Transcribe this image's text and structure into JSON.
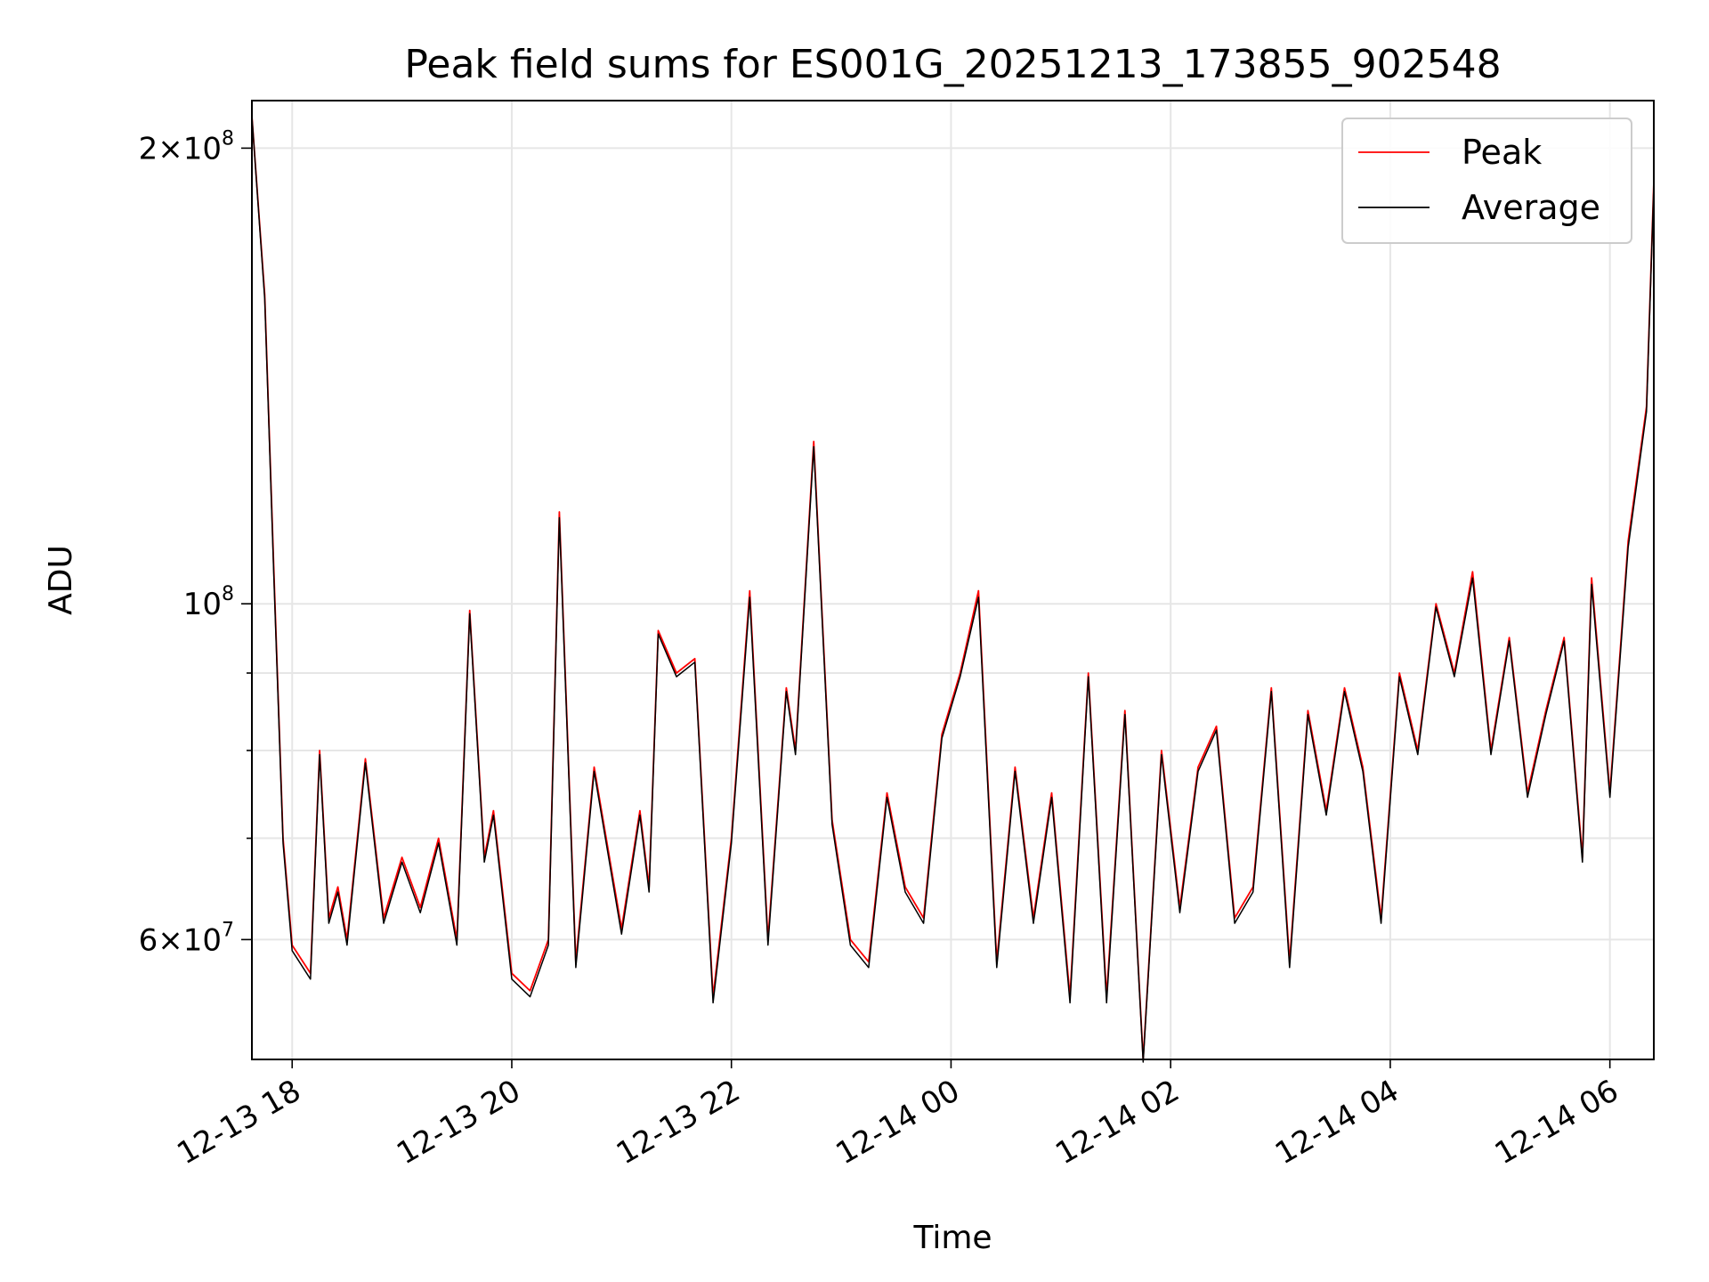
{
  "chart_data": {
    "type": "line",
    "title": "Peak field sums for ES001G_20251213_173855_902548",
    "xlabel": "Time",
    "ylabel": "ADU",
    "xlim": [
      "2025-12-13 17:38",
      "2025-12-14 06:24"
    ],
    "ylim": [
      50000000,
      215000000
    ],
    "yscale": "log",
    "grid": true,
    "legend_position": "top-right",
    "x_ticks": [
      "12-13 18",
      "12-13 20",
      "12-13 22",
      "12-14 00",
      "12-14 02",
      "12-14 04",
      "12-14 06"
    ],
    "y_ticks": [
      {
        "value": 200000000,
        "mantissa": "2",
        "exponent": "8"
      },
      {
        "value": 100000000,
        "mantissa": "",
        "exponent": "8"
      },
      {
        "value": 60000000,
        "mantissa": "6",
        "exponent": "7"
      }
    ],
    "x": [
      "2025-12-13 17:38",
      "2025-12-13 17:45",
      "2025-12-13 17:50",
      "2025-12-13 17:55",
      "2025-12-13 18:00",
      "2025-12-13 18:10",
      "2025-12-13 18:15",
      "2025-12-13 18:20",
      "2025-12-13 18:25",
      "2025-12-13 18:30",
      "2025-12-13 18:40",
      "2025-12-13 18:50",
      "2025-12-13 19:00",
      "2025-12-13 19:10",
      "2025-12-13 19:20",
      "2025-12-13 19:30",
      "2025-12-13 19:37",
      "2025-12-13 19:45",
      "2025-12-13 19:50",
      "2025-12-13 20:00",
      "2025-12-13 20:10",
      "2025-12-13 20:20",
      "2025-12-13 20:26",
      "2025-12-13 20:35",
      "2025-12-13 20:45",
      "2025-12-13 21:00",
      "2025-12-13 21:10",
      "2025-12-13 21:15",
      "2025-12-13 21:20",
      "2025-12-13 21:30",
      "2025-12-13 21:40",
      "2025-12-13 21:50",
      "2025-12-13 22:00",
      "2025-12-13 22:10",
      "2025-12-13 22:20",
      "2025-12-13 22:30",
      "2025-12-13 22:35",
      "2025-12-13 22:45",
      "2025-12-13 22:55",
      "2025-12-13 23:05",
      "2025-12-13 23:15",
      "2025-12-13 23:25",
      "2025-12-13 23:35",
      "2025-12-13 23:45",
      "2025-12-13 23:55",
      "2025-12-14 00:05",
      "2025-12-14 00:15",
      "2025-12-14 00:25",
      "2025-12-14 00:35",
      "2025-12-14 00:45",
      "2025-12-14 00:55",
      "2025-12-14 01:05",
      "2025-12-14 01:15",
      "2025-12-14 01:25",
      "2025-12-14 01:35",
      "2025-12-14 01:45",
      "2025-12-14 01:55",
      "2025-12-14 02:05",
      "2025-12-14 02:15",
      "2025-12-14 02:25",
      "2025-12-14 02:35",
      "2025-12-14 02:45",
      "2025-12-14 02:55",
      "2025-12-14 03:05",
      "2025-12-14 03:15",
      "2025-12-14 03:25",
      "2025-12-14 03:35",
      "2025-12-14 03:45",
      "2025-12-14 03:55",
      "2025-12-14 04:05",
      "2025-12-14 04:15",
      "2025-12-14 04:25",
      "2025-12-14 04:35",
      "2025-12-14 04:45",
      "2025-12-14 04:55",
      "2025-12-14 05:05",
      "2025-12-14 05:15",
      "2025-12-14 05:25",
      "2025-12-14 05:35",
      "2025-12-14 05:45",
      "2025-12-14 05:50",
      "2025-12-14 06:00",
      "2025-12-14 06:10",
      "2025-12-14 06:20",
      "2025-12-14 06:24"
    ],
    "series": [
      {
        "name": "Peak",
        "color": "#ff0000",
        "values": [
          210000000,
          160000000,
          105000000,
          70000000,
          59500000,
          57000000,
          80000000,
          62000000,
          65000000,
          60000000,
          79000000,
          62000000,
          68000000,
          63000000,
          70000000,
          60000000,
          99000000,
          68000000,
          73000000,
          57000000,
          55500000,
          60000000,
          115000000,
          58000000,
          78000000,
          61000000,
          73000000,
          65000000,
          96000000,
          90000000,
          92000000,
          55000000,
          70000000,
          102000000,
          60000000,
          88000000,
          80000000,
          128000000,
          72000000,
          60000000,
          58000000,
          75000000,
          65000000,
          62000000,
          82000000,
          90000000,
          102000000,
          58000000,
          78000000,
          62000000,
          75000000,
          55000000,
          90000000,
          55000000,
          85000000,
          50000000,
          80000000,
          63000000,
          78000000,
          83000000,
          62000000,
          65000000,
          88000000,
          58000000,
          85000000,
          73000000,
          88000000,
          78000000,
          62000000,
          90000000,
          80000000,
          100000000,
          90000000,
          105000000,
          80000000,
          95000000,
          75000000,
          85000000,
          95000000,
          68000000,
          104000000,
          75000000,
          110000000,
          135000000,
          190000000
        ]
      },
      {
        "name": "Average",
        "color": "#000000",
        "values": [
          210000000,
          159000000,
          104000000,
          69500000,
          59000000,
          56500000,
          79500000,
          61500000,
          64500000,
          59500000,
          78500000,
          61500000,
          67500000,
          62500000,
          69500000,
          59500000,
          98500000,
          67500000,
          72500000,
          56500000,
          55000000,
          59500000,
          114000000,
          57500000,
          77500000,
          60500000,
          72500000,
          64500000,
          95500000,
          89500000,
          91500000,
          54500000,
          69500000,
          101000000,
          59500000,
          87500000,
          79500000,
          127000000,
          71500000,
          59500000,
          57500000,
          74500000,
          64500000,
          61500000,
          81500000,
          89500000,
          101000000,
          57500000,
          77500000,
          61500000,
          74500000,
          54500000,
          89500000,
          54500000,
          84500000,
          49800000,
          79500000,
          62500000,
          77500000,
          82500000,
          61500000,
          64500000,
          87500000,
          57500000,
          84500000,
          72500000,
          87500000,
          77500000,
          61500000,
          89500000,
          79500000,
          99500000,
          89500000,
          104000000,
          79500000,
          94500000,
          74500000,
          84500000,
          94500000,
          67500000,
          103000000,
          74500000,
          109000000,
          134000000,
          189000000
        ]
      }
    ]
  }
}
